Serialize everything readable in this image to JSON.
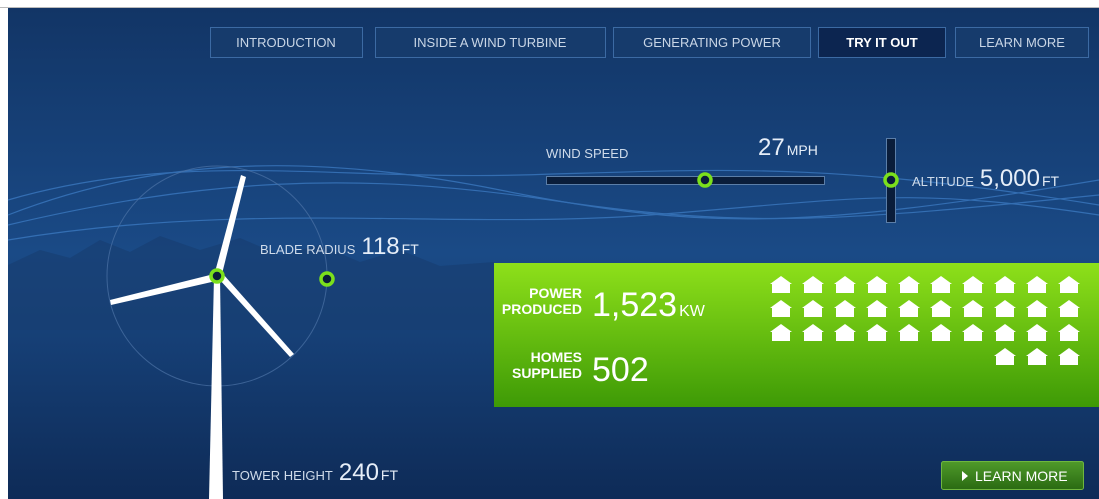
{
  "nav": [
    "INTRODUCTION",
    "INSIDE A WIND TURBINE",
    "GENERATING POWER",
    "TRY IT OUT",
    "LEARN MORE"
  ],
  "wind_speed": {
    "label": "WIND SPEED",
    "value": "27",
    "unit": "MPH"
  },
  "altitude": {
    "label": "ALTITUDE",
    "value": "5,000",
    "unit": "FT"
  },
  "blade_radius": {
    "label": "BLADE RADIUS",
    "value": "118",
    "unit": "FT"
  },
  "tower_height": {
    "label": "TOWER HEIGHT",
    "value": "240",
    "unit": "FT"
  },
  "power_produced": {
    "label_lines": [
      "POWER",
      "PRODUCED"
    ],
    "value": "1,523",
    "unit": "KW"
  },
  "homes_supplied": {
    "label_lines": [
      "HOMES",
      "SUPPLIED"
    ],
    "value": "502"
  },
  "learn_more_button": "LEARN MORE"
}
